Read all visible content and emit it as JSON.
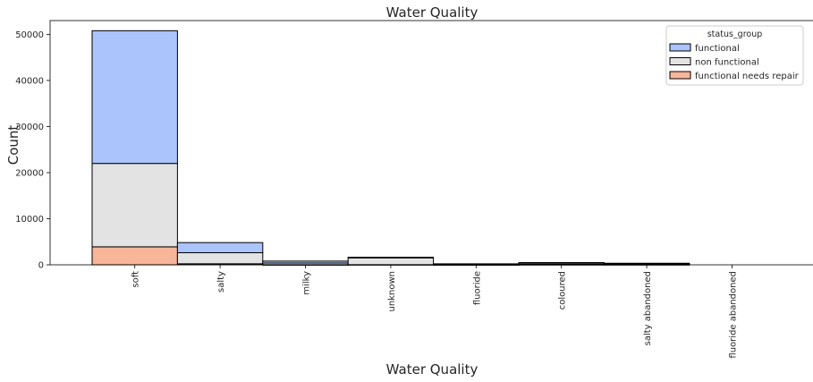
{
  "chart_data": {
    "type": "bar",
    "stacked": true,
    "title": "Water Quality",
    "xlabel": "Water Quality",
    "ylabel": "Count",
    "categories": [
      "soft",
      "salty",
      "milky",
      "unknown",
      "fluoride",
      "coloured",
      "salty abandoned",
      "fluoride abandoned"
    ],
    "ylim": [
      0,
      53000
    ],
    "yticks": [
      0,
      10000,
      20000,
      30000,
      40000,
      50000
    ],
    "ytick_labels": [
      "0",
      "10000",
      "20000",
      "30000",
      "40000",
      "50000"
    ],
    "legend": {
      "title": "status_group",
      "placement": "top-right"
    },
    "series": [
      {
        "name": "functional needs repair",
        "color": "#f7b59a",
        "values": [
          3900,
          220,
          15,
          30,
          15,
          50,
          40,
          0
        ]
      },
      {
        "name": "non functional",
        "color": "#e3e3e3",
        "values": [
          18100,
          2400,
          370,
          1480,
          50,
          190,
          200,
          0
        ]
      },
      {
        "name": "functional",
        "color": "#abc4fc",
        "values": [
          28800,
          2200,
          420,
          140,
          150,
          250,
          100,
          0
        ]
      }
    ],
    "legend_order": [
      "functional",
      "non functional",
      "functional needs repair"
    ],
    "grid": false
  }
}
